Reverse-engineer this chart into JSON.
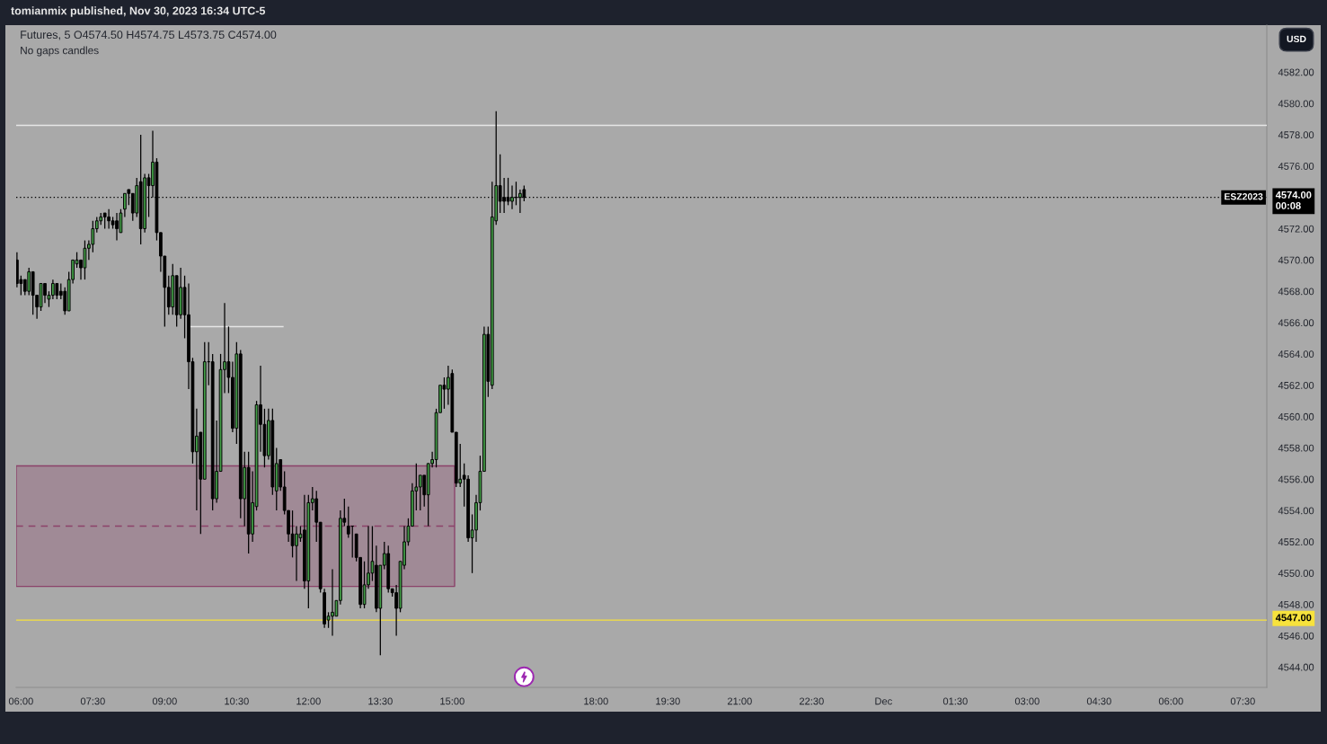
{
  "chart_data": {
    "type": "candlestick",
    "title": "Futures, 5 O4574.50 H4574.75 L4573.75 C4574.00",
    "subtitle": "No gaps candles",
    "ylabel": "USD",
    "annotations": [
      "tomianmix published, Nov 30, 2023 16:34 UTC-5",
      {
        "text": "ESZ2023",
        "y": 4574
      }
    ],
    "xlim": [
      "2023-11-30T05:54",
      "2023-12-01T08:00"
    ],
    "ylim": [
      4542.7,
      4585
    ],
    "xticks": [
      {
        "value": "2023-11-30T06:00",
        "label": "06:00"
      },
      {
        "value": "2023-11-30T07:30",
        "label": "07:30"
      },
      {
        "value": "2023-11-30T09:00",
        "label": "09:00"
      },
      {
        "value": "2023-11-30T10:30",
        "label": "10:30"
      },
      {
        "value": "2023-11-30T12:00",
        "label": "12:00"
      },
      {
        "value": "2023-11-30T13:30",
        "label": "13:30"
      },
      {
        "value": "2023-11-30T15:00",
        "label": "15:00"
      },
      {
        "value": "2023-11-30T18:00",
        "label": "18:00"
      },
      {
        "value": "2023-11-30T19:30",
        "label": "19:30"
      },
      {
        "value": "2023-11-30T21:00",
        "label": "21:00"
      },
      {
        "value": "2023-11-30T22:30",
        "label": "22:30"
      },
      {
        "value": "2023-12-01T00:00",
        "label": "Dec"
      },
      {
        "value": "2023-12-01T01:30",
        "label": "01:30"
      },
      {
        "value": "2023-12-01T03:00",
        "label": "03:00"
      },
      {
        "value": "2023-12-01T04:30",
        "label": "04:30"
      },
      {
        "value": "2023-12-01T06:00",
        "label": "06:00"
      },
      {
        "value": "2023-12-01T07:30",
        "label": "07:30"
      }
    ],
    "yticks": [
      {
        "value": 4544,
        "label": "4544.00"
      },
      {
        "value": 4546,
        "label": "4546.00"
      },
      {
        "value": 4548,
        "label": "4548.00"
      },
      {
        "value": 4550,
        "label": "4550.00"
      },
      {
        "value": 4552,
        "label": "4552.00"
      },
      {
        "value": 4554,
        "label": "4554.00"
      },
      {
        "value": 4556,
        "label": "4556.00"
      },
      {
        "value": 4558,
        "label": "4558.00"
      },
      {
        "value": 4560,
        "label": "4560.00"
      },
      {
        "value": 4562,
        "label": "4562.00"
      },
      {
        "value": 4564,
        "label": "4564.00"
      },
      {
        "value": 4566,
        "label": "4566.00"
      },
      {
        "value": 4568,
        "label": "4568.00"
      },
      {
        "value": 4570,
        "label": "4570.00"
      },
      {
        "value": 4572,
        "label": "4572.00"
      },
      {
        "value": 4576,
        "label": "4576.00"
      },
      {
        "value": 4578,
        "label": "4578.00"
      },
      {
        "value": 4580,
        "label": "4580.00"
      },
      {
        "value": 4582,
        "label": "4582.00"
      }
    ],
    "ref_lines": [
      {
        "axis": "y",
        "value": 4578.6,
        "color": "#e6e6e6",
        "line_style": "solid"
      },
      {
        "axis": "y",
        "value": 4574,
        "label": "4574.00\n00:08",
        "color": "#000000",
        "line_style": "dotted"
      },
      {
        "axis": "y",
        "value": 4547,
        "label": "4547.00",
        "color": "#f7e23c",
        "line_style": "solid"
      }
    ],
    "series": [
      {
        "type": "line",
        "x": [
          "2023-11-30T05:54",
          "2023-11-30T15:03"
        ],
        "values": [
          4553,
          4553
        ],
        "lower": [
          4549.15,
          4549.15
        ],
        "upper": [
          4556.85,
          4556.85
        ],
        "color": "#8b426a",
        "line_style": "dashed"
      },
      {
        "type": "line",
        "x": [
          "2023-11-30T09:30",
          "2023-11-30T11:28"
        ],
        "values": [
          4565.75,
          4565.75
        ],
        "color": "#e6e6e6"
      },
      {
        "x": [
          "2023-11-30T05:55",
          "2023-11-30T06:00",
          "2023-11-30T06:05",
          "2023-11-30T06:10",
          "2023-11-30T06:15",
          "2023-11-30T06:20",
          "2023-11-30T06:25",
          "2023-11-30T06:30",
          "2023-11-30T06:35",
          "2023-11-30T06:40",
          "2023-11-30T06:45",
          "2023-11-30T06:50",
          "2023-11-30T06:55",
          "2023-11-30T07:00",
          "2023-11-30T07:05",
          "2023-11-30T07:10",
          "2023-11-30T07:15",
          "2023-11-30T07:20",
          "2023-11-30T07:25",
          "2023-11-30T07:30",
          "2023-11-30T07:35",
          "2023-11-30T07:40",
          "2023-11-30T07:45",
          "2023-11-30T07:50",
          "2023-11-30T07:55",
          "2023-11-30T08:00",
          "2023-11-30T08:05",
          "2023-11-30T08:10",
          "2023-11-30T08:15",
          "2023-11-30T08:20",
          "2023-11-30T08:25",
          "2023-11-30T08:30",
          "2023-11-30T08:35",
          "2023-11-30T08:40",
          "2023-11-30T08:45",
          "2023-11-30T08:50",
          "2023-11-30T08:55",
          "2023-11-30T09:00",
          "2023-11-30T09:05",
          "2023-11-30T09:10",
          "2023-11-30T09:15",
          "2023-11-30T09:20",
          "2023-11-30T09:25",
          "2023-11-30T09:30",
          "2023-11-30T09:35",
          "2023-11-30T09:40",
          "2023-11-30T09:45",
          "2023-11-30T09:50",
          "2023-11-30T09:55",
          "2023-11-30T10:00",
          "2023-11-30T10:05",
          "2023-11-30T10:10",
          "2023-11-30T10:15",
          "2023-11-30T10:20",
          "2023-11-30T10:25",
          "2023-11-30T10:30",
          "2023-11-30T10:35",
          "2023-11-30T10:40",
          "2023-11-30T10:45",
          "2023-11-30T10:50",
          "2023-11-30T10:55",
          "2023-11-30T11:00",
          "2023-11-30T11:05",
          "2023-11-30T11:10",
          "2023-11-30T11:15",
          "2023-11-30T11:20",
          "2023-11-30T11:25",
          "2023-11-30T11:30",
          "2023-11-30T11:35",
          "2023-11-30T11:40",
          "2023-11-30T11:45",
          "2023-11-30T11:50",
          "2023-11-30T11:55",
          "2023-11-30T12:00",
          "2023-11-30T12:05",
          "2023-11-30T12:10",
          "2023-11-30T12:15",
          "2023-11-30T12:20",
          "2023-11-30T12:25",
          "2023-11-30T12:30",
          "2023-11-30T12:35",
          "2023-11-30T12:40",
          "2023-11-30T12:45",
          "2023-11-30T12:50",
          "2023-11-30T12:55",
          "2023-11-30T13:00",
          "2023-11-30T13:05",
          "2023-11-30T13:10",
          "2023-11-30T13:15",
          "2023-11-30T13:20",
          "2023-11-30T13:25",
          "2023-11-30T13:30",
          "2023-11-30T13:35",
          "2023-11-30T13:40",
          "2023-11-30T13:45",
          "2023-11-30T13:50",
          "2023-11-30T13:55",
          "2023-11-30T14:00",
          "2023-11-30T14:05",
          "2023-11-30T14:10",
          "2023-11-30T14:15",
          "2023-11-30T14:20",
          "2023-11-30T14:25",
          "2023-11-30T14:30",
          "2023-11-30T14:35",
          "2023-11-30T14:40",
          "2023-11-30T14:45",
          "2023-11-30T14:50",
          "2023-11-30T14:55",
          "2023-11-30T15:00",
          "2023-11-30T15:05",
          "2023-11-30T15:10",
          "2023-11-30T15:15",
          "2023-11-30T15:20",
          "2023-11-30T15:25",
          "2023-11-30T15:30",
          "2023-11-30T15:35",
          "2023-11-30T15:40",
          "2023-11-30T15:45",
          "2023-11-30T15:50",
          "2023-11-30T15:55",
          "2023-11-30T16:00",
          "2023-11-30T16:05",
          "2023-11-30T16:10",
          "2023-11-30T16:15",
          "2023-11-30T16:20",
          "2023-11-30T16:25",
          "2023-11-30T16:30"
        ],
        "ohlc": [
          [
            4570,
            4570.5,
            4568.25,
            4568.5
          ],
          [
            4568.75,
            4569,
            4567.75,
            4568.5
          ],
          [
            4568.75,
            4568.75,
            4567.75,
            4568
          ],
          [
            4568,
            4569.5,
            4567.75,
            4569.25
          ],
          [
            4569.25,
            4569.25,
            4566.5,
            4567.75
          ],
          [
            4567.75,
            4567.75,
            4566.25,
            4567
          ],
          [
            4567,
            4568.5,
            4566.75,
            4568.5
          ],
          [
            4568.5,
            4568.5,
            4567.25,
            4567.75
          ],
          [
            4567.5,
            4568,
            4567,
            4567.75
          ],
          [
            4567.75,
            4568.75,
            4567.5,
            4568.5
          ],
          [
            4568.5,
            4568.5,
            4567.5,
            4567.75
          ],
          [
            4568,
            4568.5,
            4567.5,
            4567.75
          ],
          [
            4568,
            4568.25,
            4566.5,
            4566.75
          ],
          [
            4566.75,
            4569.25,
            4566.75,
            4568.75
          ],
          [
            4568.75,
            4570,
            4568.5,
            4570
          ],
          [
            4569.75,
            4570.5,
            4569.5,
            4570
          ],
          [
            4570,
            4570,
            4568.75,
            4569.5
          ],
          [
            4569.5,
            4571.25,
            4568.75,
            4570.75
          ],
          [
            4570.75,
            4571.25,
            4570,
            4571
          ],
          [
            4571,
            4572.5,
            4570.5,
            4572
          ],
          [
            4572,
            4572.75,
            4571.75,
            4572.5
          ],
          [
            4572.5,
            4573,
            4572.25,
            4572.75
          ],
          [
            4573,
            4573,
            4572,
            4572.75
          ],
          [
            4572.75,
            4573.25,
            4572,
            4572.5
          ],
          [
            4572.5,
            4572.75,
            4572,
            4572.25
          ],
          [
            4572.5,
            4573,
            4571.25,
            4572
          ],
          [
            4571.75,
            4573.25,
            4571.75,
            4573
          ],
          [
            4573.25,
            4574.25,
            4572.75,
            4574.25
          ],
          [
            4574.5,
            4574.5,
            4573.5,
            4574.25
          ],
          [
            4574.25,
            4574.25,
            4572.5,
            4573
          ],
          [
            4573,
            4575.25,
            4572.75,
            4574.75
          ],
          [
            4575,
            4578,
            4571,
            4572
          ],
          [
            4572,
            4575.5,
            4571.75,
            4575.25
          ],
          [
            4575.25,
            4575.5,
            4572.75,
            4574.75
          ],
          [
            4574.75,
            4578.25,
            4574,
            4576.25
          ],
          [
            4576.25,
            4576.5,
            4571.25,
            4571.75
          ],
          [
            4571.75,
            4571.75,
            4569.25,
            4570.25
          ],
          [
            4570.25,
            4570.25,
            4565.75,
            4568.25
          ],
          [
            4568.25,
            4569,
            4566.5,
            4567
          ],
          [
            4567,
            4569.75,
            4566.5,
            4569
          ],
          [
            4569,
            4569,
            4565.75,
            4566.5
          ],
          [
            4566.5,
            4569.5,
            4566.25,
            4568.25
          ],
          [
            4568.25,
            4569,
            4565,
            4566.5
          ],
          [
            4566.5,
            4568.5,
            4561.75,
            4563.5
          ],
          [
            4563.5,
            4563.75,
            4557,
            4557.75
          ],
          [
            4557.75,
            4560.5,
            4554,
            4558.75
          ],
          [
            4559,
            4559,
            4552.5,
            4556
          ],
          [
            4556,
            4564.75,
            4556,
            4563.5
          ],
          [
            4563.5,
            4564.75,
            4562,
            4563.5
          ],
          [
            4563.5,
            4564,
            4554,
            4554.75
          ],
          [
            4554.75,
            4559.75,
            4554.5,
            4556.5
          ],
          [
            4556.5,
            4564,
            4556.5,
            4563
          ],
          [
            4563,
            4567.25,
            4561.5,
            4563.5
          ],
          [
            4563.5,
            4565.75,
            4561.5,
            4562.5
          ],
          [
            4562.5,
            4563.5,
            4559,
            4559.25
          ],
          [
            4559.25,
            4564.75,
            4558.25,
            4564
          ],
          [
            4564,
            4564.25,
            4553.5,
            4554.75
          ],
          [
            4554.75,
            4557.75,
            4553,
            4556.75
          ],
          [
            4556.75,
            4557.75,
            4551.25,
            4552.5
          ],
          [
            4552.5,
            4556.5,
            4552,
            4554.5
          ],
          [
            4554.25,
            4561,
            4554,
            4560.75
          ],
          [
            4560.75,
            4563.25,
            4557.75,
            4559.5
          ],
          [
            4559.5,
            4560.5,
            4556.75,
            4557.5
          ],
          [
            4557.5,
            4560.5,
            4557.25,
            4559.75
          ],
          [
            4559.75,
            4560.5,
            4555,
            4555.5
          ],
          [
            4555.25,
            4558,
            4554,
            4557
          ],
          [
            4557.25,
            4557.25,
            4555.25,
            4555.5
          ],
          [
            4555.5,
            4556.5,
            4553.75,
            4554
          ],
          [
            4554,
            4554,
            4552,
            4552.5
          ],
          [
            4552.5,
            4554,
            4551,
            4551.75
          ],
          [
            4551.75,
            4553,
            4549.5,
            4552.5
          ],
          [
            4552.25,
            4553,
            4552,
            4552.5
          ],
          [
            4552.75,
            4555,
            4549,
            4549.5
          ],
          [
            4549.5,
            4555,
            4547.75,
            4554.5
          ],
          [
            4554.5,
            4555.5,
            4554,
            4554.75
          ],
          [
            4554.75,
            4555.25,
            4552,
            4553.25
          ],
          [
            4553.25,
            4553.25,
            4548.75,
            4549
          ],
          [
            4548.75,
            4549,
            4546.5,
            4546.75
          ],
          [
            4547,
            4547.5,
            4546.5,
            4547.25
          ],
          [
            4547.25,
            4550.25,
            4546,
            4547.5
          ],
          [
            4547.25,
            4548.25,
            4547.25,
            4548.25
          ],
          [
            4548.25,
            4554,
            4548,
            4553.5
          ],
          [
            4553.5,
            4554.75,
            4553,
            4553.25
          ],
          [
            4553,
            4554.25,
            4552.25,
            4552.5
          ],
          [
            4553,
            4553,
            4551,
            4553
          ],
          [
            4552.5,
            4552.5,
            4550.75,
            4551
          ],
          [
            4551,
            4551,
            4547.75,
            4548
          ],
          [
            4548,
            4550.75,
            4547.75,
            4549.25
          ],
          [
            4549.25,
            4553,
            4549,
            4550
          ],
          [
            4550,
            4553,
            4549.5,
            4550.75
          ],
          [
            4550.5,
            4551.75,
            4547.5,
            4547.75
          ],
          [
            4547.75,
            4550.5,
            4544.75,
            4550.5
          ],
          [
            4550.5,
            4552,
            4550.25,
            4551.25
          ],
          [
            4551.25,
            4551.75,
            4548.75,
            4549
          ],
          [
            4549,
            4549,
            4548.5,
            4548.75
          ],
          [
            4548.75,
            4549.25,
            4546,
            4547.75
          ],
          [
            4547.75,
            4550.75,
            4547.5,
            4550.75
          ],
          [
            4550.5,
            4553,
            4550.25,
            4552
          ],
          [
            4552,
            4553.5,
            4551.75,
            4553
          ],
          [
            4553,
            4555.75,
            4553,
            4555.25
          ],
          [
            4555.25,
            4557,
            4554,
            4555.5
          ],
          [
            4555.5,
            4556.25,
            4554,
            4556.25
          ],
          [
            4556.25,
            4556.25,
            4554.25,
            4555
          ],
          [
            4555,
            4557,
            4553,
            4557
          ],
          [
            4557,
            4557.75,
            4556.75,
            4557.25
          ],
          [
            4557.25,
            4560.5,
            4556.75,
            4560.25
          ],
          [
            4560.25,
            4562,
            4560.25,
            4562
          ],
          [
            4562,
            4562.5,
            4560.5,
            4561.75
          ],
          [
            4561.75,
            4563.25,
            4560.75,
            4562.5
          ],
          [
            4562.75,
            4563,
            4559,
            4559
          ],
          [
            4559,
            4559,
            4555.5,
            4555.75
          ],
          [
            4555.75,
            4558.25,
            4555.5,
            4556
          ],
          [
            4556.25,
            4557,
            4554.25,
            4556
          ],
          [
            4556,
            4556.25,
            4552,
            4552.25
          ],
          [
            4552.25,
            4553.75,
            4550,
            4552.75
          ],
          [
            4552.75,
            4555,
            4552,
            4554.5
          ],
          [
            4554.5,
            4557.5,
            4554,
            4556.5
          ],
          [
            4556.5,
            4565.75,
            4556.5,
            4565.25
          ],
          [
            4565.25,
            4565.75,
            4561.25,
            4562.25
          ],
          [
            4562,
            4575,
            4561.75,
            4572.75
          ],
          [
            4572.5,
            4579.5,
            4572.25,
            4574.75
          ],
          [
            4574.75,
            4576.75,
            4573,
            4573.75
          ],
          [
            4574,
            4575.25,
            4573,
            4573.75
          ],
          [
            4574,
            4575.25,
            4573.5,
            4573.75
          ],
          [
            4573.75,
            4574.75,
            4573.25,
            4574
          ],
          [
            4574,
            4575,
            4573.5,
            4574
          ],
          [
            4574,
            4574.5,
            4573,
            4574.25
          ],
          [
            4574.5,
            4574.75,
            4573.75,
            4574
          ]
        ],
        "colors": [
          "#000000",
          "#000000",
          "#000000",
          "#43a047",
          "#000000",
          "#000000",
          "#43a047",
          "#000000",
          "#43a047",
          "#43a047",
          "#000000",
          "#000000",
          "#000000",
          "#43a047",
          "#43a047",
          "#43a047",
          "#000000",
          "#43a047",
          "#43a047",
          "#43a047",
          "#43a047",
          "#43a047",
          "#000000",
          "#000000",
          "#000000",
          "#000000",
          "#43a047",
          "#43a047",
          "#000000",
          "#000000",
          "#43a047",
          "#000000",
          "#43a047",
          "#000000",
          "#43a047",
          "#000000",
          "#000000",
          "#000000",
          "#000000",
          "#43a047",
          "#000000",
          "#43a047",
          "#000000",
          "#000000",
          "#000000",
          "#43a047",
          "#000000",
          "#43a047",
          "#000000",
          "#000000",
          "#43a047",
          "#43a047",
          "#43a047",
          "#000000",
          "#000000",
          "#43a047",
          "#000000",
          "#43a047",
          "#000000",
          "#43a047",
          "#43a047",
          "#000000",
          "#000000",
          "#43a047",
          "#000000",
          "#43a047",
          "#000000",
          "#000000",
          "#000000",
          "#000000",
          "#43a047",
          "#43a047",
          "#000000",
          "#43a047",
          "#43a047",
          "#000000",
          "#000000",
          "#000000",
          "#43a047",
          "#43a047",
          "#43a047",
          "#43a047",
          "#000000",
          "#000000",
          "#000000",
          "#000000",
          "#000000",
          "#43a047",
          "#43a047",
          "#43a047",
          "#000000",
          "#43a047",
          "#43a047",
          "#000000",
          "#000000",
          "#000000",
          "#43a047",
          "#43a047",
          "#43a047",
          "#43a047",
          "#43a047",
          "#43a047",
          "#000000",
          "#43a047",
          "#43a047",
          "#43a047",
          "#43a047",
          "#000000",
          "#43a047",
          "#000000",
          "#000000",
          "#43a047",
          "#000000",
          "#000000",
          "#43a047",
          "#43a047",
          "#43a047",
          "#43a047",
          "#000000",
          "#43a047",
          "#43a047",
          "#000000",
          "#000000",
          "#000000",
          "#43a047",
          "#000000",
          "#43a047",
          "#000000"
        ]
      }
    ]
  }
}
